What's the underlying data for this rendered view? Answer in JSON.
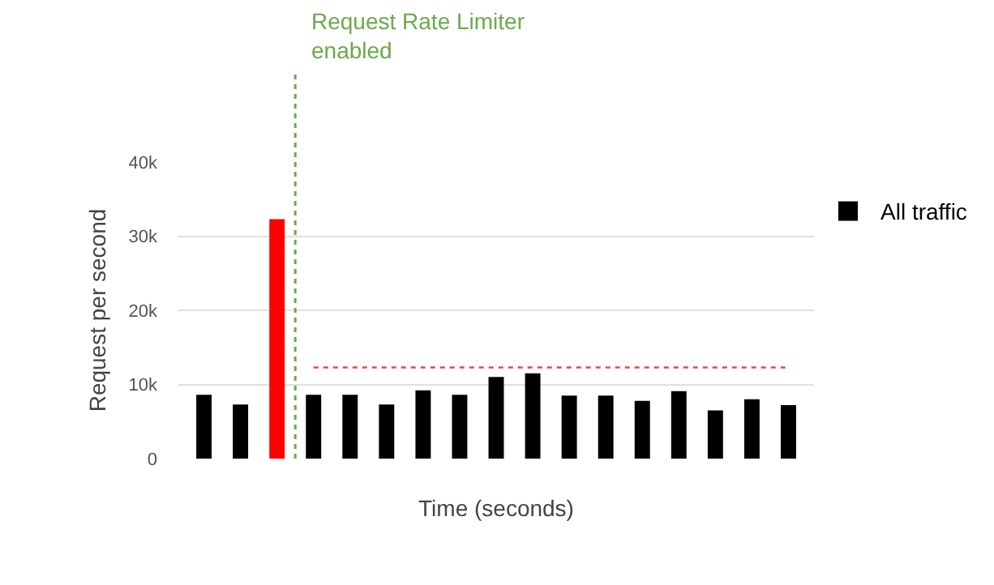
{
  "chart_data": {
    "type": "bar",
    "xlabel": "Time (seconds)",
    "ylabel": "Request per second",
    "categories": [
      null,
      null,
      null,
      null,
      null,
      null,
      null,
      null,
      null,
      null,
      null,
      null,
      null,
      null,
      null,
      null,
      null
    ],
    "series": [
      {
        "name": "All traffic",
        "color": "#000000",
        "colors": [
          "#000000",
          "#000000",
          "#ff0000",
          "#000000",
          "#000000",
          "#000000",
          "#000000",
          "#000000",
          "#000000",
          "#000000",
          "#000000",
          "#000000",
          "#000000",
          "#000000",
          "#000000",
          "#000000",
          "#000000"
        ],
        "values": [
          8600,
          7300,
          32300,
          8600,
          8600,
          7300,
          9200,
          8600,
          11000,
          11500,
          8500,
          8500,
          7800,
          9100,
          6500,
          8000,
          7200
        ]
      },
      {
        "type": "line",
        "color": "#e8474a",
        "line_style": "dotted",
        "marker": "none",
        "values": [
          null,
          null,
          null,
          12300,
          12300,
          12300,
          12300,
          12300,
          12300,
          12300,
          12300,
          12300,
          12300,
          12300,
          12300,
          12300,
          12300
        ]
      }
    ],
    "annotations": [
      "Request Rate Limiter enabled"
    ],
    "ylim": [
      0,
      40000
    ],
    "yticks": [
      0,
      {
        "value": 10000,
        "label": "10k"
      },
      {
        "value": 20000,
        "label": "20k"
      },
      {
        "value": 30000,
        "label": "30k"
      },
      {
        "value": 40000,
        "label": "40k"
      }
    ],
    "grid": "y",
    "legend": "top right"
  }
}
